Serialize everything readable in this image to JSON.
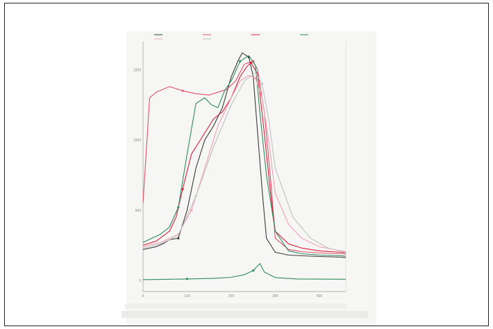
{
  "chart_data": {
    "type": "line",
    "title": "",
    "xlabel": "",
    "ylabel": "",
    "x_ticks": [
      0,
      100,
      200,
      300,
      400
    ],
    "y_ticks": [
      0,
      500,
      1000,
      1500
    ],
    "xlim": [
      0,
      460
    ],
    "ylim": [
      -30,
      1700
    ],
    "grid": false,
    "legend_position": "top",
    "series": [
      {
        "name": "",
        "color": "#3a3a3a",
        "x": [
          0,
          30,
          45,
          60,
          80,
          100,
          120,
          140,
          160,
          180,
          200,
          215,
          225,
          240,
          250,
          260,
          270,
          280,
          300,
          330,
          360,
          400,
          450,
          460
        ],
        "y": [
          220,
          240,
          260,
          290,
          300,
          500,
          800,
          1000,
          1100,
          1230,
          1450,
          1560,
          1620,
          1590,
          1450,
          1050,
          650,
          300,
          200,
          180,
          175,
          170,
          165,
          162
        ]
      },
      {
        "name": "",
        "color": "#e0506a",
        "x": [
          0,
          15,
          30,
          60,
          90,
          120,
          150,
          170,
          190,
          210,
          230,
          250,
          260,
          275,
          290,
          300,
          330,
          360,
          400,
          450,
          460
        ],
        "y": [
          550,
          1300,
          1340,
          1380,
          1350,
          1330,
          1320,
          1340,
          1360,
          1420,
          1540,
          1560,
          1500,
          1200,
          700,
          300,
          220,
          205,
          195,
          190,
          188
        ]
      },
      {
        "name": "",
        "color": "#d8203a",
        "x": [
          0,
          30,
          60,
          75,
          90,
          110,
          140,
          160,
          180,
          200,
          220,
          235,
          245,
          260,
          275,
          290,
          300,
          330,
          360,
          400,
          450,
          460
        ],
        "y": [
          250,
          280,
          350,
          450,
          650,
          900,
          1050,
          1150,
          1200,
          1300,
          1450,
          1520,
          1550,
          1470,
          1050,
          600,
          350,
          260,
          230,
          210,
          200,
          198
        ]
      },
      {
        "name": "",
        "color": "#2e8a5a",
        "x": [
          0,
          20,
          40,
          60,
          80,
          100,
          120,
          140,
          155,
          170,
          185,
          200,
          220,
          240,
          255,
          265,
          280,
          300,
          330,
          360,
          400,
          450,
          460
        ],
        "y": [
          270,
          300,
          330,
          380,
          520,
          900,
          1260,
          1300,
          1250,
          1230,
          1350,
          1420,
          1560,
          1600,
          1530,
          1200,
          750,
          350,
          210,
          190,
          180,
          175,
          172
        ]
      },
      {
        "name": "",
        "color": "#f0a0b8",
        "x": [
          0,
          40,
          80,
          110,
          140,
          170,
          200,
          220,
          240,
          255,
          270,
          285,
          300,
          330,
          360,
          400,
          450,
          460
        ],
        "y": [
          240,
          270,
          330,
          500,
          800,
          1100,
          1300,
          1420,
          1460,
          1440,
          1300,
          1000,
          620,
          400,
          300,
          240,
          210,
          205
        ]
      },
      {
        "name": "",
        "color": "#c0c0c0",
        "x": [
          0,
          40,
          80,
          120,
          160,
          200,
          230,
          255,
          270,
          285,
          300,
          340,
          380,
          420,
          460
        ],
        "y": [
          230,
          260,
          320,
          600,
          950,
          1250,
          1420,
          1480,
          1400,
          1150,
          800,
          450,
          300,
          230,
          200
        ]
      },
      {
        "name": "",
        "color": "#2e8a5a",
        "x": [
          0,
          60,
          100,
          160,
          200,
          230,
          250,
          265,
          275,
          300,
          350,
          460
        ],
        "y": [
          5,
          8,
          10,
          14,
          22,
          40,
          70,
          120,
          60,
          20,
          10,
          8
        ]
      }
    ]
  }
}
